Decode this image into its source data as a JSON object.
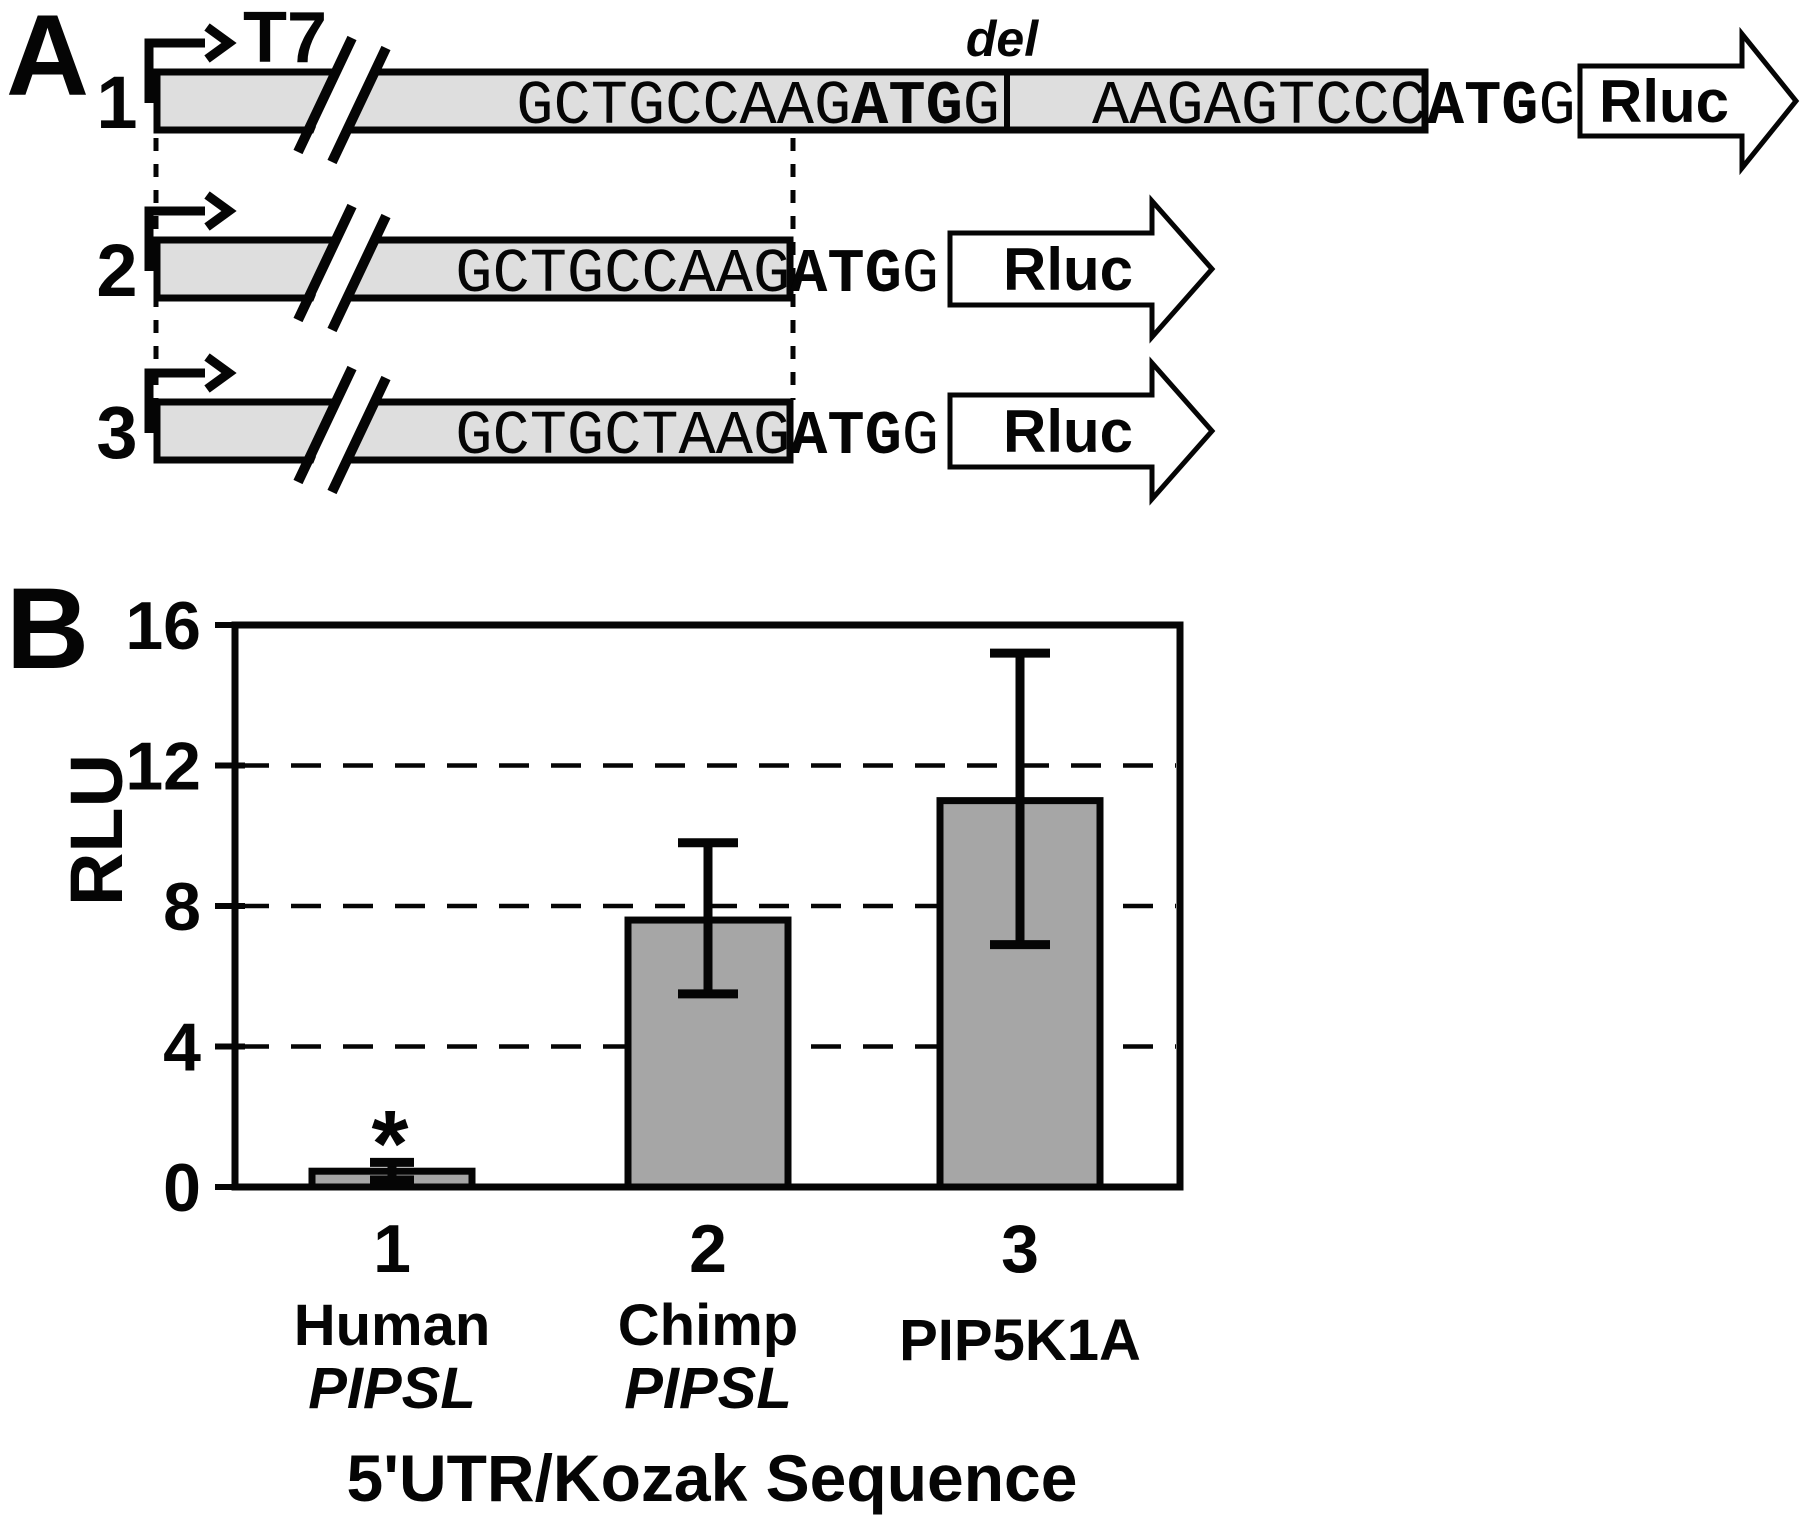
{
  "panel_a": {
    "label": "A",
    "t7_label": "T7",
    "del_label": "del",
    "rluc_label": "Rluc",
    "bar_fill": "#dedede",
    "constructs": [
      {
        "number": "1",
        "utr_seq": "GCTGCCAAG",
        "start_codon": "ATG",
        "after_codon": "G",
        "downstream_seq": "AAGAGTCCC",
        "downstream_start_codon": "ATG",
        "downstream_after_codon": "G"
      },
      {
        "number": "2",
        "utr_seq": "GCTGCCAAG",
        "start_codon": "ATG",
        "after_codon": "G"
      },
      {
        "number": "3",
        "utr_seq": "GCTGCTAAG",
        "start_codon": "ATG",
        "after_codon": "G"
      }
    ]
  },
  "panel_b": {
    "label": "B",
    "significance_marker": "*"
  },
  "chart_data": {
    "type": "bar",
    "title": "",
    "xlabel": "5'UTR/Kozak Sequence",
    "ylabel": "RLU",
    "ylim": [
      0,
      16
    ],
    "yticks": [
      0,
      4,
      8,
      12,
      16
    ],
    "gridlines_at": [
      4,
      8,
      12
    ],
    "grid_style": "dashed",
    "legend": "none",
    "categories": [
      "1",
      "2",
      "3"
    ],
    "category_labels": [
      [
        "Human",
        "PIPSL"
      ],
      [
        "Chimp",
        "PIPSL"
      ],
      [
        "PIP5K1A"
      ]
    ],
    "values": [
      0.45,
      7.6,
      11.0
    ],
    "error_low": [
      0.2,
      5.5,
      6.9
    ],
    "error_high": [
      0.7,
      9.8,
      15.2
    ],
    "annotations": [
      {
        "category_index": 0,
        "text": "*"
      }
    ],
    "bar_fill": "#a6a6a6",
    "bar_stroke": "#050505"
  }
}
